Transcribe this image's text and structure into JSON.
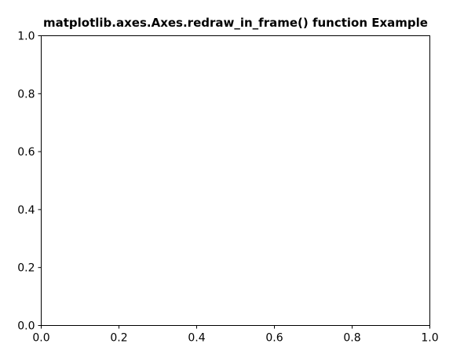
{
  "chart_data": {
    "type": "line",
    "title": "matplotlib.axes.Axes.redraw_in_frame() function Example",
    "xlabel": "",
    "ylabel": "",
    "xlim": [
      0.0,
      1.0
    ],
    "ylim": [
      0.0,
      1.0
    ],
    "xticks": [
      "0.0",
      "0.2",
      "0.4",
      "0.6",
      "0.8",
      "1.0"
    ],
    "yticks": [
      "0.0",
      "0.2",
      "0.4",
      "0.6",
      "0.8",
      "1.0"
    ],
    "grid": false,
    "series": []
  }
}
